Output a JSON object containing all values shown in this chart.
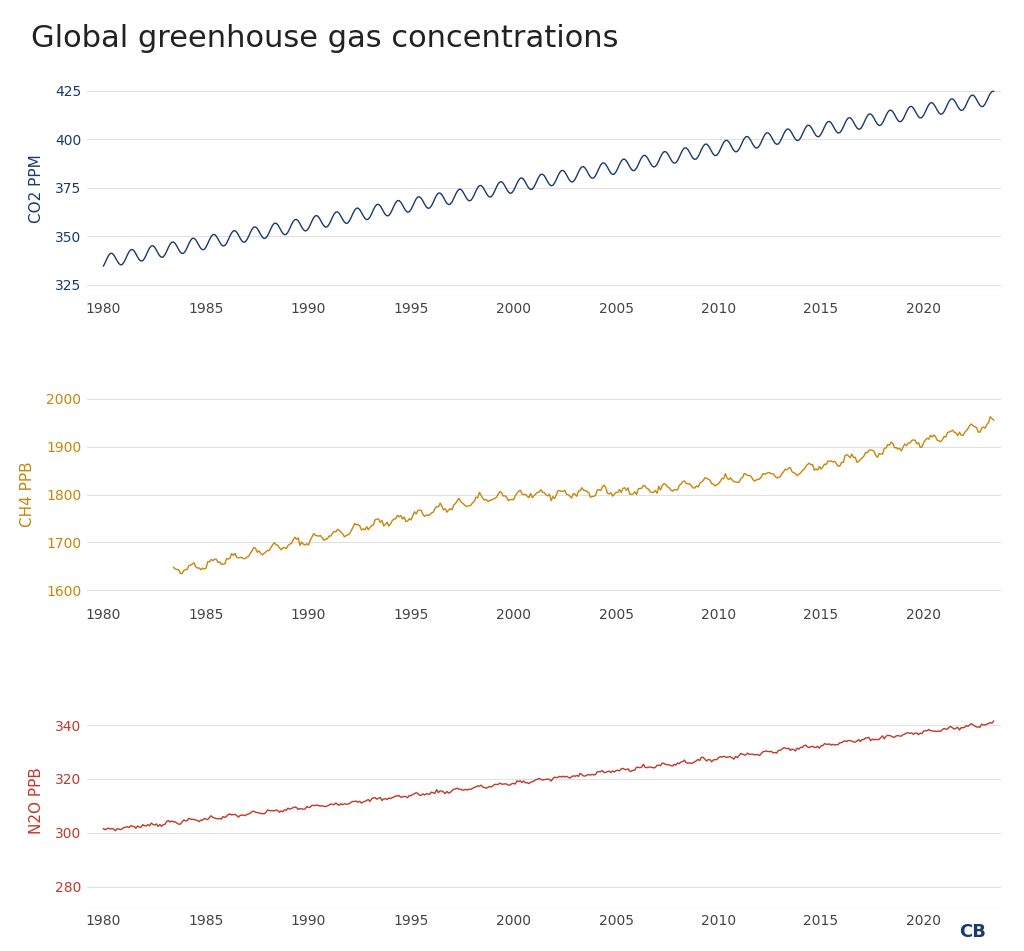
{
  "title": "Global greenhouse gas concentrations",
  "title_color": "#222222",
  "title_fontsize": 22,
  "background_color": "#ffffff",
  "co2_color": "#1a3a6e",
  "ch4_color": "#c8860a",
  "n2o_color": "#c0392b",
  "tick_color": "#444444",
  "grid_color": "#e0e0e0",
  "bottom_line_color": "#b0bfd8",
  "co2_ylabel": "CO2 PPM",
  "ch4_ylabel": "CH4 PPB",
  "n2o_ylabel": "N2O PPB",
  "co2_ylim": [
    319,
    430
  ],
  "ch4_ylim": [
    1575,
    2025
  ],
  "n2o_ylim": [
    272,
    352
  ],
  "co2_yticks": [
    325,
    350,
    375,
    400,
    425
  ],
  "ch4_yticks": [
    1600,
    1700,
    1800,
    1900,
    2000
  ],
  "n2o_yticks": [
    280,
    300,
    320,
    340
  ],
  "xticks": [
    1980,
    1985,
    1990,
    1995,
    2000,
    2005,
    2010,
    2015,
    2020
  ],
  "xlim": [
    1979.2,
    2023.8
  ],
  "line_width": 1.0
}
